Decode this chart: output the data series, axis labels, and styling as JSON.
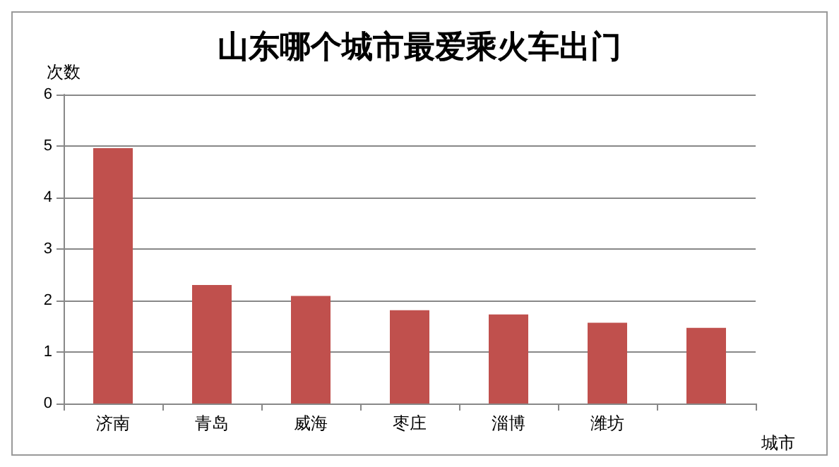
{
  "chart_data": {
    "type": "bar",
    "title": "山东哪个城市最爱乘火车出门",
    "ylabel": "次数",
    "xlabel": "城市",
    "categories": [
      "济南",
      "青岛",
      "威海",
      "枣庄",
      "淄博",
      "潍坊",
      null
    ],
    "values": [
      4.96,
      2.3,
      2.09,
      1.81,
      1.73,
      1.57,
      1.47
    ],
    "color": "#c0504d",
    "ylim": [
      0,
      6
    ],
    "yticks": [
      0,
      1,
      2,
      3,
      4,
      5,
      6
    ],
    "grid": "y"
  }
}
